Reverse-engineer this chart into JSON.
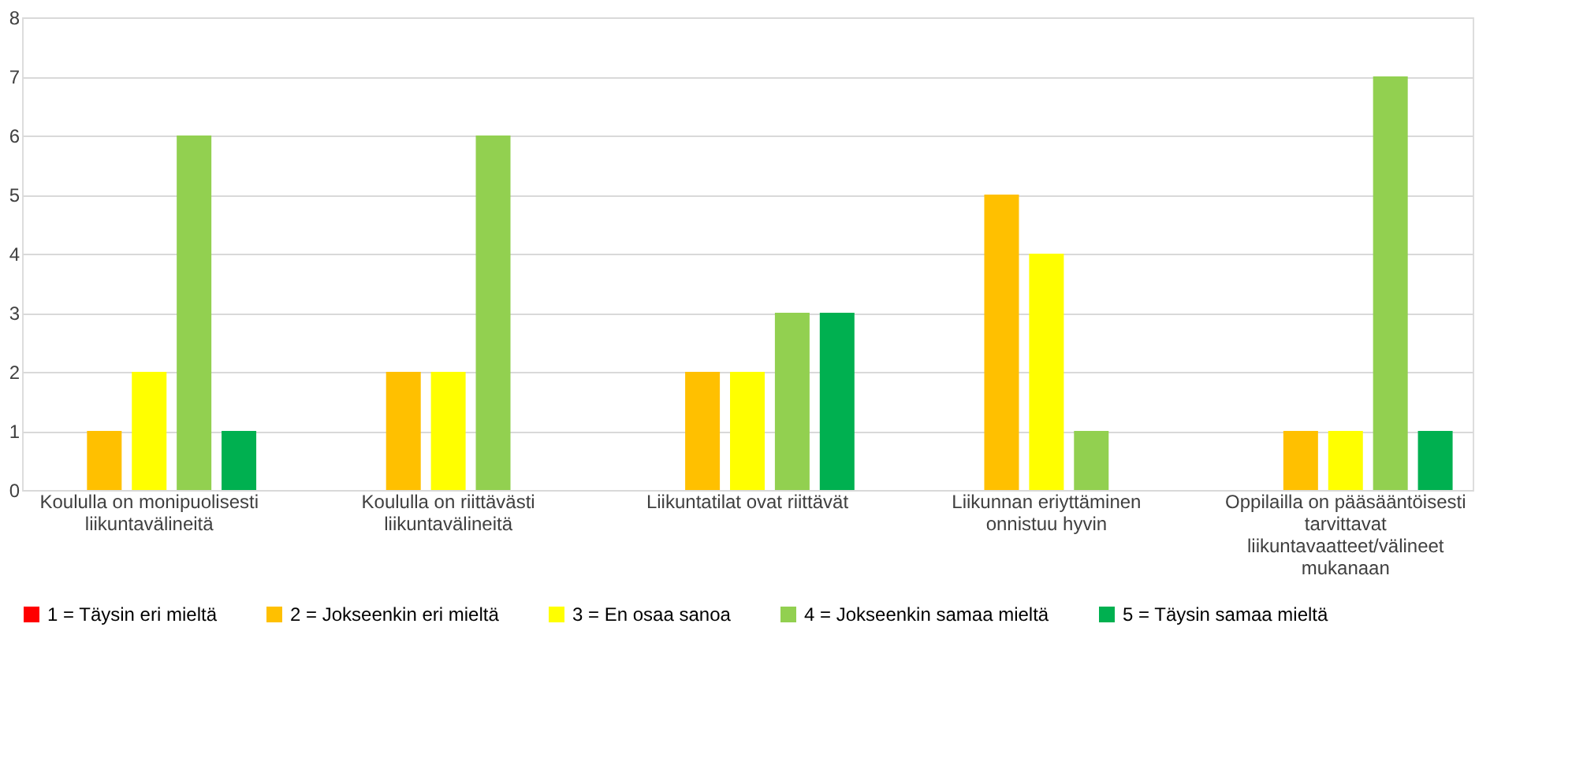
{
  "chart_data": {
    "type": "bar",
    "categories": [
      "Koululla on monipuolisesti liikuntavälineitä",
      "Koululla on riittävästi liikuntavälineitä",
      "Liikuntatilat ovat riittävät",
      "Liikunnan eriyttäminen onnistuu hyvin",
      "Oppilailla on pääsääntöisesti tarvittavat liikuntavaatteet/välineet mukanaan"
    ],
    "series": [
      {
        "name": "1 = Täysin eri mieltä",
        "color": "#ff0000",
        "values": [
          0,
          0,
          0,
          0,
          0
        ]
      },
      {
        "name": "2 = Jokseenkin eri mieltä",
        "color": "#ffc000",
        "values": [
          1,
          2,
          2,
          5,
          1
        ]
      },
      {
        "name": "3 = En osaa sanoa",
        "color": "#ffff00",
        "values": [
          2,
          2,
          2,
          4,
          1
        ]
      },
      {
        "name": "4 = Jokseenkin samaa mieltä",
        "color": "#92d050",
        "values": [
          6,
          6,
          3,
          1,
          7
        ]
      },
      {
        "name": "5 = Täysin samaa mieltä",
        "color": "#00b050",
        "values": [
          1,
          0,
          3,
          0,
          1
        ]
      }
    ],
    "ylim": [
      0,
      8
    ],
    "yticks": [
      0,
      1,
      2,
      3,
      4,
      5,
      6,
      7,
      8
    ],
    "grid": "y",
    "legend": "bottom"
  }
}
